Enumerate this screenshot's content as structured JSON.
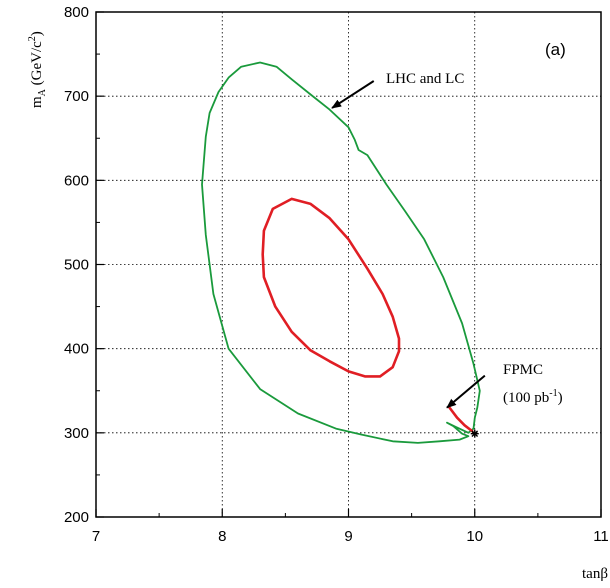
{
  "chart_data": {
    "type": "line",
    "panel_label": "(a)",
    "xlabel": "tanβ",
    "ylabel": {
      "main": "m",
      "sub": "A",
      "unit_open": " (GeV/c",
      "sup": "2",
      "unit_close": ")"
    },
    "xlim": [
      7,
      11
    ],
    "ylim": [
      200,
      800
    ],
    "xticks": [
      "7",
      "8",
      "9",
      "10",
      "11"
    ],
    "yticks": [
      "200",
      "300",
      "400",
      "500",
      "600",
      "700",
      "800"
    ],
    "grid": true,
    "series": [
      {
        "color": "#1a9a3c",
        "points": [
          [
            8.3,
            740
          ],
          [
            8.43,
            735
          ],
          [
            8.55,
            720
          ],
          [
            8.7,
            702
          ],
          [
            8.85,
            684
          ],
          [
            9.0,
            663
          ],
          [
            9.05,
            648
          ],
          [
            9.08,
            636
          ],
          [
            9.15,
            630
          ],
          [
            9.3,
            595
          ],
          [
            9.45,
            563
          ],
          [
            9.6,
            530
          ],
          [
            9.75,
            485
          ],
          [
            9.9,
            430
          ],
          [
            9.99,
            382
          ],
          [
            10.04,
            350
          ],
          [
            10.02,
            330
          ],
          [
            10.0,
            318
          ],
          [
            9.99,
            305
          ],
          [
            9.95,
            300
          ],
          [
            9.85,
            307
          ],
          [
            9.78,
            312
          ],
          [
            9.83,
            308
          ],
          [
            9.9,
            299
          ],
          [
            9.95,
            296
          ],
          [
            9.88,
            292
          ],
          [
            9.72,
            290
          ],
          [
            9.55,
            288
          ],
          [
            9.35,
            290
          ],
          [
            9.1,
            298
          ],
          [
            8.9,
            305
          ],
          [
            8.6,
            323
          ],
          [
            8.3,
            352
          ],
          [
            8.05,
            400
          ],
          [
            7.93,
            465
          ],
          [
            7.87,
            535
          ],
          [
            7.84,
            595
          ],
          [
            7.87,
            652
          ],
          [
            7.9,
            680
          ],
          [
            7.97,
            705
          ],
          [
            8.05,
            722
          ],
          [
            8.15,
            735
          ],
          [
            8.3,
            740
          ]
        ]
      },
      {
        "color": "#e01e24",
        "points": [
          [
            8.55,
            578
          ],
          [
            8.7,
            572
          ],
          [
            8.85,
            555
          ],
          [
            9.0,
            530
          ],
          [
            9.15,
            495
          ],
          [
            9.27,
            465
          ],
          [
            9.35,
            438
          ],
          [
            9.4,
            412
          ],
          [
            9.4,
            397
          ],
          [
            9.35,
            378
          ],
          [
            9.25,
            367
          ],
          [
            9.13,
            367
          ],
          [
            9.0,
            373
          ],
          [
            8.85,
            385
          ],
          [
            8.7,
            398
          ],
          [
            8.55,
            420
          ],
          [
            8.42,
            450
          ],
          [
            8.33,
            485
          ],
          [
            8.32,
            512
          ],
          [
            8.33,
            540
          ],
          [
            8.4,
            566
          ],
          [
            8.55,
            578
          ]
        ]
      },
      {
        "color": "#e01e24",
        "points": [
          [
            9.8,
            330
          ],
          [
            9.86,
            318
          ],
          [
            9.92,
            309
          ],
          [
            9.98,
            302
          ]
        ]
      }
    ],
    "markers": [
      {
        "x": 10.0,
        "y": 299,
        "symbol": "*"
      }
    ],
    "annotations": [
      {
        "text": "LHC and LC",
        "arrow_from": [
          9.2,
          718
        ],
        "arrow_to": [
          8.87,
          686
        ]
      },
      {
        "text_line1": "FPMC",
        "text_line2_pre": "(100 pb",
        "text_line2_sup": "-1",
        "text_line2_post": ")",
        "arrow_from": [
          10.08,
          368
        ],
        "arrow_to": [
          9.78,
          330
        ]
      }
    ]
  }
}
